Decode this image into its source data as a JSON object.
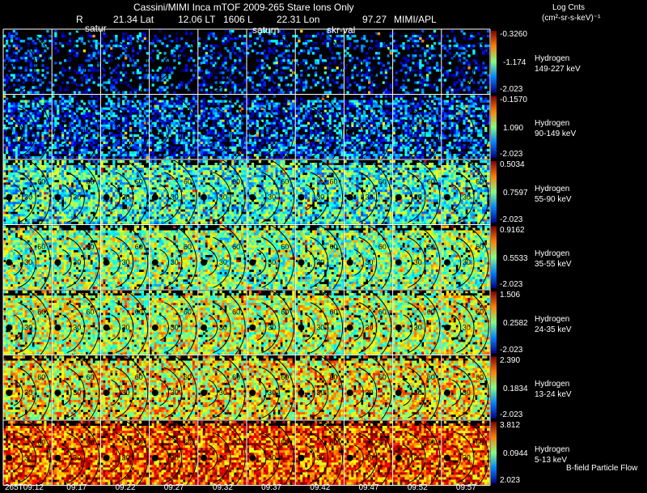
{
  "header": {
    "title": "Cassini/MIMI Inca mTOF  2009-265   Stare   Ions Only",
    "r_label": "R",
    "lat": "21.34 Lat",
    "lt": "12.06 LT",
    "l": "1606 L",
    "lon": "22.31 Lon",
    "val": "97.27",
    "org": "MIMI/APL",
    "units_line1": "Log Cnts",
    "units_line2": "(cm²-sr-s-keV)⁻¹",
    "footer_note": "B-field Particle Flow"
  },
  "overlay_labels": {
    "saturn_a": "satur",
    "saturn_b": "saturn",
    "sky_c": "skr-val"
  },
  "chart_data": {
    "type": "heatmap",
    "title": "Cassini/MIMI Inca mTOF  2009-265   Stare   Ions Only",
    "time_labels": [
      "265T09:12",
      "09:17",
      "09:22",
      "09:27",
      "09:32",
      "09:37",
      "09:42",
      "09:47",
      "09:52",
      "09:57"
    ],
    "contour_labels": [
      "30",
      "60",
      "90"
    ],
    "rows": [
      {
        "species": "Hydrogen",
        "energy": "149-227 keV",
        "max": "-0.3260",
        "mid": "-1.174",
        "min": "-2.023",
        "density": 0.35,
        "level": 0.18
      },
      {
        "species": "Hydrogen",
        "energy": "90-149 keV",
        "max": "-0.1570",
        "mid": "1.090",
        "min": "-2.023",
        "density": 0.65,
        "level": 0.22
      },
      {
        "species": "Hydrogen",
        "energy": "55-90 keV",
        "max": "0.5034",
        "mid": "0.7597",
        "min": "-2.023",
        "density": 0.9,
        "level": 0.42
      },
      {
        "species": "Hydrogen",
        "energy": "35-55 keV",
        "max": "0.9162",
        "mid": "0.5533",
        "min": "-2.023",
        "density": 0.92,
        "level": 0.5
      },
      {
        "species": "Hydrogen",
        "energy": "24-35 keV",
        "max": "1.506",
        "mid": "0.2582",
        "min": "-2.023",
        "density": 0.92,
        "level": 0.56
      },
      {
        "species": "Hydrogen",
        "energy": "13-24 keV",
        "max": "2.390",
        "mid": "0.1834",
        "min": "-2.023",
        "density": 0.93,
        "level": 0.62
      },
      {
        "species": "Hydrogen",
        "energy": "5-13 keV",
        "max": "3.812",
        "mid": "0.0944",
        "min": "2.023",
        "density": 0.96,
        "level": 0.8
      }
    ]
  }
}
